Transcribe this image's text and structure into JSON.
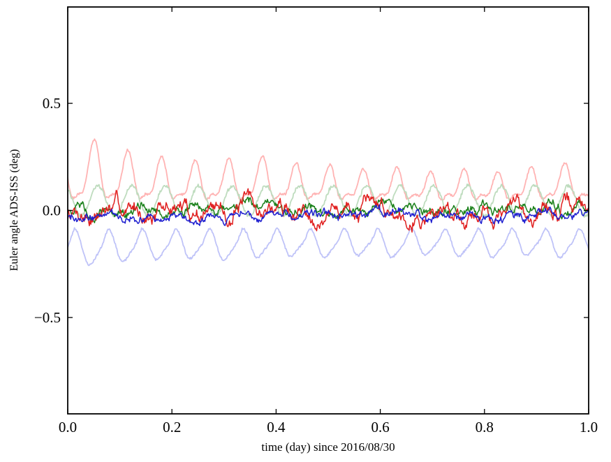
{
  "figure": {
    "background": "#ffffff",
    "frame_color": "#000000"
  },
  "chart_data": {
    "type": "line",
    "title": "",
    "xlabel": "time (day) since 2016/08/30",
    "ylabel": "Euler angle ADS-ISS (deg)",
    "xlim": [
      0.0,
      1.0
    ],
    "ylim": [
      -0.95,
      0.95
    ],
    "xticks": [
      {
        "value": 0.0,
        "label": "0.0"
      },
      {
        "value": 0.2,
        "label": "0.2"
      },
      {
        "value": 0.4,
        "label": "0.4"
      },
      {
        "value": 0.6,
        "label": "0.6"
      },
      {
        "value": 0.8,
        "label": "0.8"
      },
      {
        "value": 1.0,
        "label": "1.0"
      }
    ],
    "yticks": [
      {
        "value": -0.5,
        "label": "−0.5"
      },
      {
        "value": 0.0,
        "label": "0.0"
      },
      {
        "value": 0.5,
        "label": "0.5"
      }
    ],
    "grid": false,
    "legend": null,
    "cycles_per_day": 15.5,
    "series": [
      {
        "name": "euler-angle-1-smoothed",
        "color": "#ffb3b3",
        "width": 1.8,
        "kind": "peaks",
        "base": 0.055,
        "peak_amps": [
          0.26,
          0.21,
          0.18,
          0.16,
          0.17,
          0.18,
          0.15,
          0.14,
          0.12,
          0.13,
          0.11,
          0.12,
          0.11,
          0.13,
          0.15,
          0.12
        ],
        "shape_power": 3,
        "phase_cycles": -0.275,
        "wiggle": 0.02,
        "jitter": 0.006,
        "seed": 21,
        "points": 700
      },
      {
        "name": "euler-angle-2-smoothed",
        "color": "#bedcbe",
        "width": 1.8,
        "kind": "sine",
        "base": 0.045,
        "amp": 0.07,
        "peak_cycle": 0.9,
        "jitter": 0.008,
        "seed": 22,
        "points": 700
      },
      {
        "name": "euler-angle-3-smoothed",
        "color": "#bfc3f8",
        "width": 1.8,
        "kind": "dips",
        "top": -0.085,
        "dip_depths": [
          0.165,
          0.15,
          0.14,
          0.135,
          0.14,
          0.13,
          0.125,
          0.13,
          0.12,
          0.13,
          0.12,
          0.125,
          0.13,
          0.12,
          0.13,
          0.12
        ],
        "shape_power": 1.4,
        "phase_cycles": -0.2,
        "wiggle": 0.012,
        "jitter": 0.005,
        "seed": 23,
        "points": 700
      },
      {
        "name": "euler-angle-2",
        "color": "#1a801a",
        "width": 1.5,
        "kind": "walk",
        "mean": 0.005,
        "step": 0.03,
        "damp": 0.9,
        "cyc_amp": 0.012,
        "jitter": 0.006,
        "seed": 5,
        "points": 700
      },
      {
        "name": "euler-angle-1",
        "color": "#e02020",
        "width": 1.5,
        "kind": "walk",
        "mean": 0.0,
        "step": 0.05,
        "damp": 0.92,
        "cyc_amp": 0.01,
        "jitter": 0.008,
        "seed": 7,
        "points": 700
      },
      {
        "name": "euler-angle-3",
        "color": "#2020d0",
        "width": 1.5,
        "kind": "walk",
        "mean": -0.028,
        "step": 0.024,
        "damp": 0.91,
        "cyc_amp": 0.01,
        "jitter": 0.006,
        "seed": 9,
        "points": 700
      }
    ]
  }
}
